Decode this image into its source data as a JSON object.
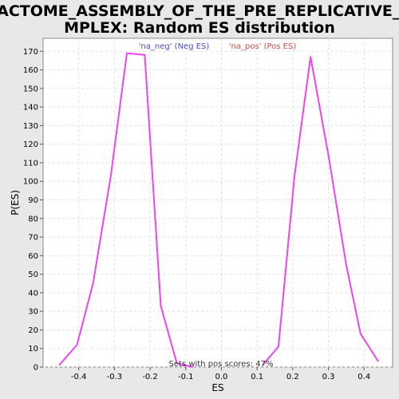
{
  "chart_data": {
    "type": "line",
    "title_lines": [
      "REACTOME_ASSEMBLY_OF_THE_PRE_REPLICATIVE_CO",
      "MPLEX: Random ES distribution"
    ],
    "xlabel": "ES",
    "ylabel": "P(ES)",
    "xlim": [
      -0.5,
      0.48
    ],
    "ylim": [
      0,
      177
    ],
    "xticks": [
      -0.4,
      -0.3,
      -0.2,
      -0.1,
      0.0,
      0.1,
      0.2,
      0.3,
      0.4
    ],
    "xtick_labels": [
      "-0.4",
      "-0.3",
      "-0.2",
      "-0.1",
      "0.0",
      "0.1",
      "0.2",
      "0.3",
      "0.4"
    ],
    "yticks": [
      0,
      10,
      20,
      30,
      40,
      50,
      60,
      70,
      80,
      90,
      100,
      110,
      120,
      130,
      140,
      150,
      160,
      170
    ],
    "ytick_labels": [
      "0",
      "10",
      "20",
      "30",
      "40",
      "50",
      "60",
      "70",
      "80",
      "90",
      "100",
      "110",
      "120",
      "130",
      "140",
      "150",
      "160",
      "170"
    ],
    "grid": true,
    "legend": [
      {
        "label": "'na_neg' (Neg ES)",
        "color": "#4b4bcc"
      },
      {
        "label": "'na_pos' (Pos ES)",
        "color": "#cc4b4b"
      }
    ],
    "legend_position": "top-center",
    "annotation": "Sets with pos scores: 47%",
    "series": [
      {
        "color": "#ee44ee",
        "x": [
          -0.455,
          -0.405,
          -0.36,
          -0.31,
          -0.265,
          -0.215,
          -0.17,
          -0.125,
          -0.08
        ],
        "y": [
          1,
          12,
          45,
          103,
          169,
          168,
          33,
          2,
          0
        ]
      },
      {
        "color": "#ee44ee",
        "x": [
          0.115,
          0.16,
          0.205,
          0.25,
          0.3,
          0.35,
          0.39,
          0.44
        ],
        "y": [
          1,
          11,
          103,
          167,
          114,
          55,
          18,
          3
        ]
      }
    ]
  }
}
